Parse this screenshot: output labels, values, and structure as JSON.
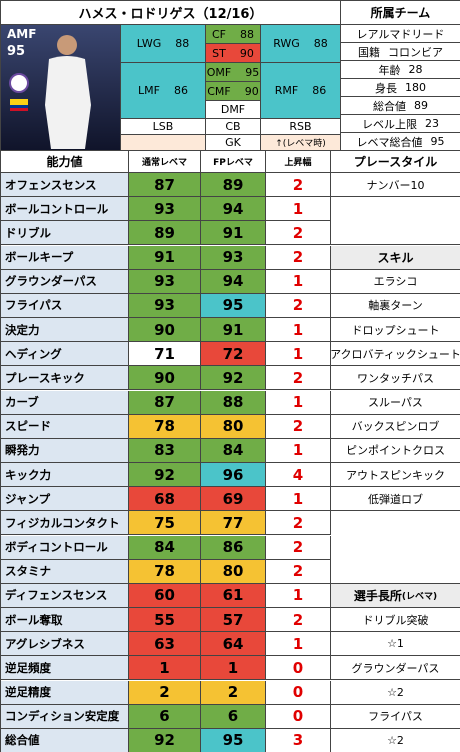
{
  "title": "ハメス・ロドリゲス（12/16）",
  "card": {
    "position": "AMF",
    "rating": 95
  },
  "positions": [
    {
      "name": "LWG",
      "value": 88,
      "shade": "cyan"
    },
    {
      "name": "CF",
      "value": 88,
      "shade": "green"
    },
    {
      "name": "ST",
      "value": 90,
      "shade": "red"
    },
    {
      "name": "RWG",
      "value": 88,
      "shade": "cyan"
    },
    {
      "name": "LMF",
      "value": 86,
      "shade": "cyan"
    },
    {
      "name": "OMF",
      "value": 95,
      "shade": "green"
    },
    {
      "name": "CMF",
      "value": 90,
      "shade": "green"
    },
    {
      "name": "DMF",
      "shade": "white"
    },
    {
      "name": "RMF",
      "value": 86,
      "shade": "cyan"
    },
    {
      "name": "LSB",
      "shade": "white"
    },
    {
      "name": "CB",
      "shade": "white"
    },
    {
      "name": "RSB",
      "shade": "white"
    },
    {
      "name": "GK",
      "shade": "white"
    }
  ],
  "level_note": "↑(レベマ時)",
  "profile": {
    "header": "所属チーム",
    "team": "レアルマドリード",
    "fields": [
      {
        "label": "国籍",
        "value": "コロンビア"
      },
      {
        "label": "年齢",
        "value": 28
      },
      {
        "label": "身長",
        "value": 180
      },
      {
        "label": "総合値",
        "value": 89
      },
      {
        "label": "レベル上限",
        "value": 23
      },
      {
        "label": "レベマ総合値",
        "value": 95
      }
    ]
  },
  "palette": {
    "green": "#70ad47",
    "cyan": "#4bc4c9",
    "yellow": "#f5c233",
    "red": "#e8483a",
    "white": "#ffffff",
    "peach": "#fde9d9"
  },
  "table": {
    "headers": [
      "能力値",
      "通常レベマ",
      "FPレベマ",
      "上昇幅",
      "プレースタイル"
    ],
    "rows": [
      {
        "name": "オフェンスセンス",
        "normal": 87,
        "fp": 89,
        "gain": 2,
        "shade": [
          "green",
          "green"
        ]
      },
      {
        "name": "ボールコントロール",
        "normal": 93,
        "fp": 94,
        "gain": 1,
        "shade": [
          "green",
          "green"
        ]
      },
      {
        "name": "ドリブル",
        "normal": 89,
        "fp": 91,
        "gain": 2,
        "shade": [
          "green",
          "green"
        ]
      },
      {
        "name": "ボールキープ",
        "normal": 91,
        "fp": 93,
        "gain": 2,
        "shade": [
          "green",
          "green"
        ]
      },
      {
        "name": "グラウンダーパス",
        "normal": 93,
        "fp": 94,
        "gain": 1,
        "shade": [
          "green",
          "green"
        ]
      },
      {
        "name": "フライパス",
        "normal": 93,
        "fp": 95,
        "gain": 2,
        "shade": [
          "green",
          "cyan"
        ]
      },
      {
        "name": "決定力",
        "normal": 90,
        "fp": 91,
        "gain": 1,
        "shade": [
          "green",
          "green"
        ]
      },
      {
        "name": "ヘディング",
        "normal": 71,
        "fp": 72,
        "gain": 1,
        "shade": [
          "white",
          "red"
        ]
      },
      {
        "name": "プレースキック",
        "normal": 90,
        "fp": 92,
        "gain": 2,
        "shade": [
          "green",
          "green"
        ]
      },
      {
        "name": "カーブ",
        "normal": 87,
        "fp": 88,
        "gain": 1,
        "shade": [
          "green",
          "green"
        ]
      },
      {
        "name": "スピード",
        "normal": 78,
        "fp": 80,
        "gain": 2,
        "shade": [
          "yellow",
          "yellow"
        ]
      },
      {
        "name": "瞬発力",
        "normal": 83,
        "fp": 84,
        "gain": 1,
        "shade": [
          "green",
          "green"
        ]
      },
      {
        "name": "キック力",
        "normal": 92,
        "fp": 96,
        "gain": 4,
        "shade": [
          "green",
          "cyan"
        ]
      },
      {
        "name": "ジャンプ",
        "normal": 68,
        "fp": 69,
        "gain": 1,
        "shade": [
          "red",
          "red"
        ]
      },
      {
        "name": "フィジカルコンタクト",
        "normal": 75,
        "fp": 77,
        "gain": 2,
        "shade": [
          "yellow",
          "yellow"
        ]
      },
      {
        "name": "ボディコントロール",
        "normal": 84,
        "fp": 86,
        "gain": 2,
        "shade": [
          "green",
          "green"
        ]
      },
      {
        "name": "スタミナ",
        "normal": 78,
        "fp": 80,
        "gain": 2,
        "shade": [
          "yellow",
          "yellow"
        ]
      },
      {
        "name": "ディフェンスセンス",
        "normal": 60,
        "fp": 61,
        "gain": 1,
        "shade": [
          "red",
          "red"
        ]
      },
      {
        "name": "ボール奪取",
        "normal": 55,
        "fp": 57,
        "gain": 2,
        "shade": [
          "red",
          "red"
        ]
      },
      {
        "name": "アグレシブネス",
        "normal": 63,
        "fp": 64,
        "gain": 1,
        "shade": [
          "red",
          "red"
        ]
      },
      {
        "name": "逆足頻度",
        "normal": 1,
        "fp": 1,
        "gain": 0,
        "shade": [
          "red",
          "red"
        ]
      },
      {
        "name": "逆足精度",
        "normal": 2,
        "fp": 2,
        "gain": 0,
        "shade": [
          "yellow",
          "yellow"
        ]
      },
      {
        "name": "コンディション安定度",
        "normal": 6,
        "fp": 6,
        "gain": 0,
        "shade": [
          "green",
          "green"
        ]
      },
      {
        "name": "総合値",
        "normal": 92,
        "fp": 95,
        "gain": 3,
        "shade": [
          "green",
          "cyan"
        ]
      }
    ]
  },
  "playstyle": [
    "ナンバー10"
  ],
  "skills": {
    "header": "スキル",
    "items": [
      "エラシコ",
      "軸裏ターン",
      "ドロップシュート",
      "アクロバティックシュート",
      "ワンタッチパス",
      "スルーパス",
      "バックスピンロブ",
      "ピンポイントクロス",
      "アウトスピンキック",
      "低弾道ロブ"
    ]
  },
  "strengths": {
    "header": "選手長所",
    "note": "(レベマ)",
    "items": [
      "ドリブル突破",
      "☆1",
      "グラウンダーパス",
      "☆2",
      "フライパス",
      "☆2"
    ]
  }
}
